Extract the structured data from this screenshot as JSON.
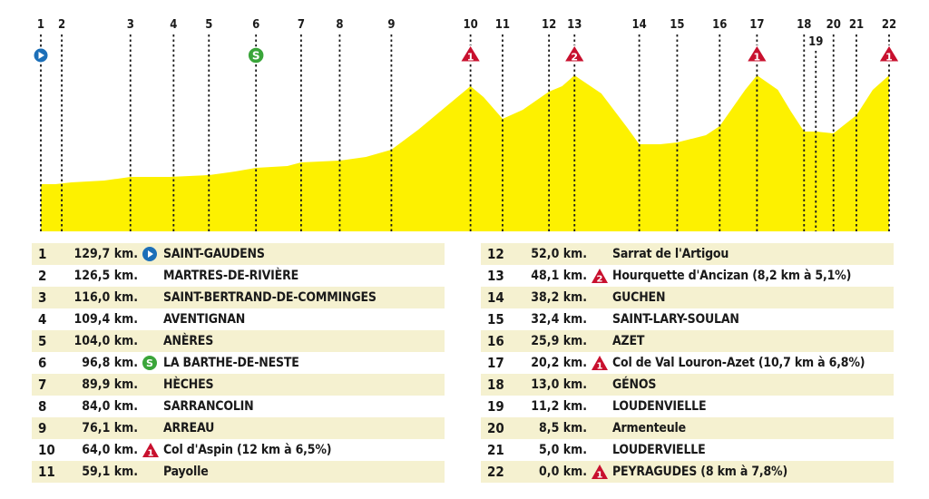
{
  "chart_data": {
    "type": "area",
    "title": "",
    "xlabel": "",
    "ylabel": "",
    "fill_color": "#fdf100",
    "km_start": 129.7,
    "markers": [
      {
        "id": "1",
        "km": 129.7,
        "icon": "start"
      },
      {
        "id": "2",
        "km": 126.5
      },
      {
        "id": "3",
        "km": 116.0
      },
      {
        "id": "4",
        "km": 109.4
      },
      {
        "id": "5",
        "km": 104.0
      },
      {
        "id": "6",
        "km": 96.8,
        "icon": "sprint"
      },
      {
        "id": "7",
        "km": 89.9
      },
      {
        "id": "8",
        "km": 84.0
      },
      {
        "id": "9",
        "km": 76.1
      },
      {
        "id": "10",
        "km": 64.0,
        "icon": "climb",
        "category": "1"
      },
      {
        "id": "11",
        "km": 59.1
      },
      {
        "id": "12",
        "km": 52.0
      },
      {
        "id": "13",
        "km": 48.1,
        "icon": "climb",
        "category": "2"
      },
      {
        "id": "14",
        "km": 38.2
      },
      {
        "id": "15",
        "km": 32.4
      },
      {
        "id": "16",
        "km": 25.9
      },
      {
        "id": "17",
        "km": 20.2,
        "icon": "climb",
        "category": "1"
      },
      {
        "id": "18",
        "km": 13.0
      },
      {
        "id": "19",
        "km": 11.2,
        "label_row": "lower"
      },
      {
        "id": "20",
        "km": 8.5
      },
      {
        "id": "21",
        "km": 5.0
      },
      {
        "id": "22",
        "km": 0.0,
        "icon": "climb",
        "category": "1"
      }
    ],
    "elevation_profile": [
      {
        "km": 129.7,
        "alt": 0.26
      },
      {
        "km": 127.5,
        "alt": 0.26
      },
      {
        "km": 125.0,
        "alt": 0.27
      },
      {
        "km": 120.0,
        "alt": 0.28
      },
      {
        "km": 116.0,
        "alt": 0.3
      },
      {
        "km": 110.0,
        "alt": 0.3
      },
      {
        "km": 104.0,
        "alt": 0.31
      },
      {
        "km": 100.0,
        "alt": 0.33
      },
      {
        "km": 96.8,
        "alt": 0.35
      },
      {
        "km": 92.0,
        "alt": 0.36
      },
      {
        "km": 89.9,
        "alt": 0.38
      },
      {
        "km": 84.0,
        "alt": 0.39
      },
      {
        "km": 80.0,
        "alt": 0.41
      },
      {
        "km": 76.1,
        "alt": 0.45
      },
      {
        "km": 72.0,
        "alt": 0.56
      },
      {
        "km": 68.0,
        "alt": 0.68
      },
      {
        "km": 64.0,
        "alt": 0.8
      },
      {
        "km": 62.0,
        "alt": 0.74
      },
      {
        "km": 59.1,
        "alt": 0.62
      },
      {
        "km": 56.0,
        "alt": 0.67
      },
      {
        "km": 52.0,
        "alt": 0.77
      },
      {
        "km": 50.0,
        "alt": 0.8
      },
      {
        "km": 48.1,
        "alt": 0.86
      },
      {
        "km": 44.0,
        "alt": 0.76
      },
      {
        "km": 40.0,
        "alt": 0.57
      },
      {
        "km": 38.2,
        "alt": 0.48
      },
      {
        "km": 35.0,
        "alt": 0.48
      },
      {
        "km": 32.4,
        "alt": 0.49
      },
      {
        "km": 28.0,
        "alt": 0.53
      },
      {
        "km": 25.9,
        "alt": 0.58
      },
      {
        "km": 22.0,
        "alt": 0.78
      },
      {
        "km": 20.2,
        "alt": 0.86
      },
      {
        "km": 17.0,
        "alt": 0.78
      },
      {
        "km": 15.0,
        "alt": 0.66
      },
      {
        "km": 13.0,
        "alt": 0.55
      },
      {
        "km": 11.2,
        "alt": 0.55
      },
      {
        "km": 8.5,
        "alt": 0.54
      },
      {
        "km": 5.0,
        "alt": 0.64
      },
      {
        "km": 2.5,
        "alt": 0.78
      },
      {
        "km": 0.0,
        "alt": 0.86
      }
    ],
    "table": [
      {
        "n": "1",
        "km": "129,7 km.",
        "icon": "start",
        "name": "SAINT-GAUDENS"
      },
      {
        "n": "2",
        "km": "126,5 km.",
        "icon": "",
        "name": "MARTRES-DE-RIVIÈRE"
      },
      {
        "n": "3",
        "km": "116,0 km.",
        "icon": "",
        "name": "SAINT-BERTRAND-DE-COMMINGES"
      },
      {
        "n": "4",
        "km": "109,4 km.",
        "icon": "",
        "name": "AVENTIGNAN"
      },
      {
        "n": "5",
        "km": "104,0 km.",
        "icon": "",
        "name": "ANÈRES"
      },
      {
        "n": "6",
        "km": "96,8 km.",
        "icon": "sprint",
        "name": "LA BARTHE-DE-NESTE"
      },
      {
        "n": "7",
        "km": "89,9 km.",
        "icon": "",
        "name": "HÈCHES"
      },
      {
        "n": "8",
        "km": "84,0 km.",
        "icon": "",
        "name": "SARRANCOLIN"
      },
      {
        "n": "9",
        "km": "76,1 km.",
        "icon": "",
        "name": "ARREAU"
      },
      {
        "n": "10",
        "km": "64,0 km.",
        "icon": "climb",
        "category": "1",
        "name": "Col d'Aspin (12 km à 6,5%)"
      },
      {
        "n": "11",
        "km": "59,1 km.",
        "icon": "",
        "name": "Payolle"
      },
      {
        "n": "12",
        "km": "52,0 km.",
        "icon": "",
        "name": "Sarrat de l'Artigou"
      },
      {
        "n": "13",
        "km": "48,1 km.",
        "icon": "climb",
        "category": "2",
        "name": "Hourquette d'Ancizan (8,2 km à 5,1%)"
      },
      {
        "n": "14",
        "km": "38,2 km.",
        "icon": "",
        "name": "GUCHEN"
      },
      {
        "n": "15",
        "km": "32,4 km.",
        "icon": "",
        "name": "SAINT-LARY-SOULAN"
      },
      {
        "n": "16",
        "km": "25,9 km.",
        "icon": "",
        "name": "AZET"
      },
      {
        "n": "17",
        "km": "20,2 km.",
        "icon": "climb",
        "category": "1",
        "name": "Col de Val Louron-Azet (10,7 km à 6,8%)"
      },
      {
        "n": "18",
        "km": "13,0 km.",
        "icon": "",
        "name": "GÉNOS"
      },
      {
        "n": "19",
        "km": "11,2 km.",
        "icon": "",
        "name": "LOUDENVIELLE"
      },
      {
        "n": "20",
        "km": "8,5 km.",
        "icon": "",
        "name": "Armenteule"
      },
      {
        "n": "21",
        "km": "5,0 km.",
        "icon": "",
        "name": "LOUDERVIELLE"
      },
      {
        "n": "22",
        "km": "0,0 km.",
        "icon": "climb",
        "category": "1",
        "name": "PEYRAGUDES (8 km à 7,8%)"
      }
    ]
  }
}
